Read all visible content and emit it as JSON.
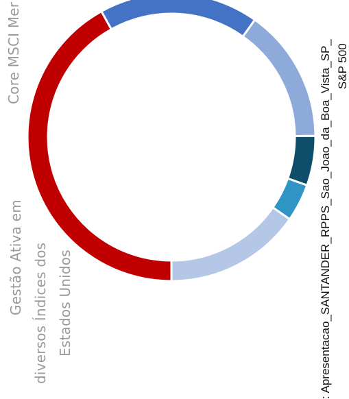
{
  "chart_data": {
    "type": "pie",
    "subtype": "donut",
    "slices": [
      {
        "label": "Gestão Ativa em diversos Índices dos Estados Unidos",
        "value": 40.7,
        "color": "#c00000"
      },
      {
        "label": "",
        "value": 17.4,
        "color": "#4472c4"
      },
      {
        "label": "",
        "value": 14.6,
        "color": "#8eaadb"
      },
      {
        "label": "",
        "value": 5.4,
        "color": "#0f4e6b"
      },
      {
        "label": "",
        "value": 4.1,
        "color": "#2e95c4"
      },
      {
        "label": "Core MSCI Mer",
        "value": 14.9,
        "color": "#b4c7e7"
      }
    ]
  },
  "labels": {
    "gestao_line1": "Gestão Ativa em",
    "gestao_line2": "diversos Índices dos",
    "gestao_line3": "Estados Unidos",
    "core": "Core MSCI Mer",
    "source_line1": ": Apresentacao_SANTANDER_RPPS_Sao_Joao_da_Boa_Vista_SP_",
    "source_line2": "S&P 500"
  }
}
